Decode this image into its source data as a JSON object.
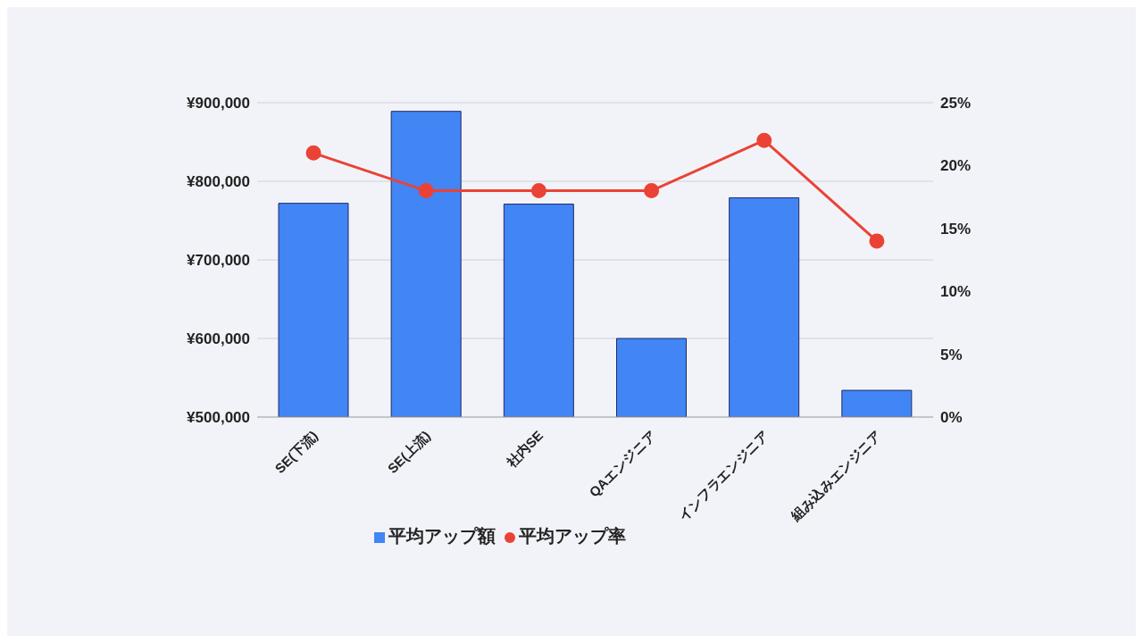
{
  "chart_data": {
    "type": "bar",
    "categories": [
      "SE(下流)",
      "SE(上流)",
      "社内SE",
      "QAエンジニア",
      "インフラエンジニア",
      "組み込みエンジニア"
    ],
    "series": [
      {
        "name": "平均アップ額",
        "color": "#4285f4",
        "values": [
          772000,
          889000,
          771000,
          600000,
          779000,
          534000
        ]
      },
      {
        "name": "平均アップ率",
        "type": "line",
        "axis": "y2",
        "color": "#ea4335",
        "values": [
          21,
          18,
          18,
          18,
          22,
          14
        ]
      }
    ],
    "ylim": [
      500000,
      900000
    ],
    "yticks": [
      {
        "value": 500000,
        "label": "¥500,000"
      },
      {
        "value": 600000,
        "label": "¥600,000"
      },
      {
        "value": 700000,
        "label": "¥700,000"
      },
      {
        "value": 800000,
        "label": "¥800,000"
      },
      {
        "value": 900000,
        "label": "¥900,000"
      }
    ],
    "y2lim": [
      0,
      25
    ],
    "y2ticks": [
      {
        "value": 0,
        "label": "0%"
      },
      {
        "value": 5,
        "label": "5%"
      },
      {
        "value": 10,
        "label": "10%"
      },
      {
        "value": 15,
        "label": "15%"
      },
      {
        "value": 20,
        "label": "20%"
      },
      {
        "value": 25,
        "label": "25%"
      }
    ],
    "grid": "y",
    "legend": "bottom",
    "marker": "circle"
  }
}
